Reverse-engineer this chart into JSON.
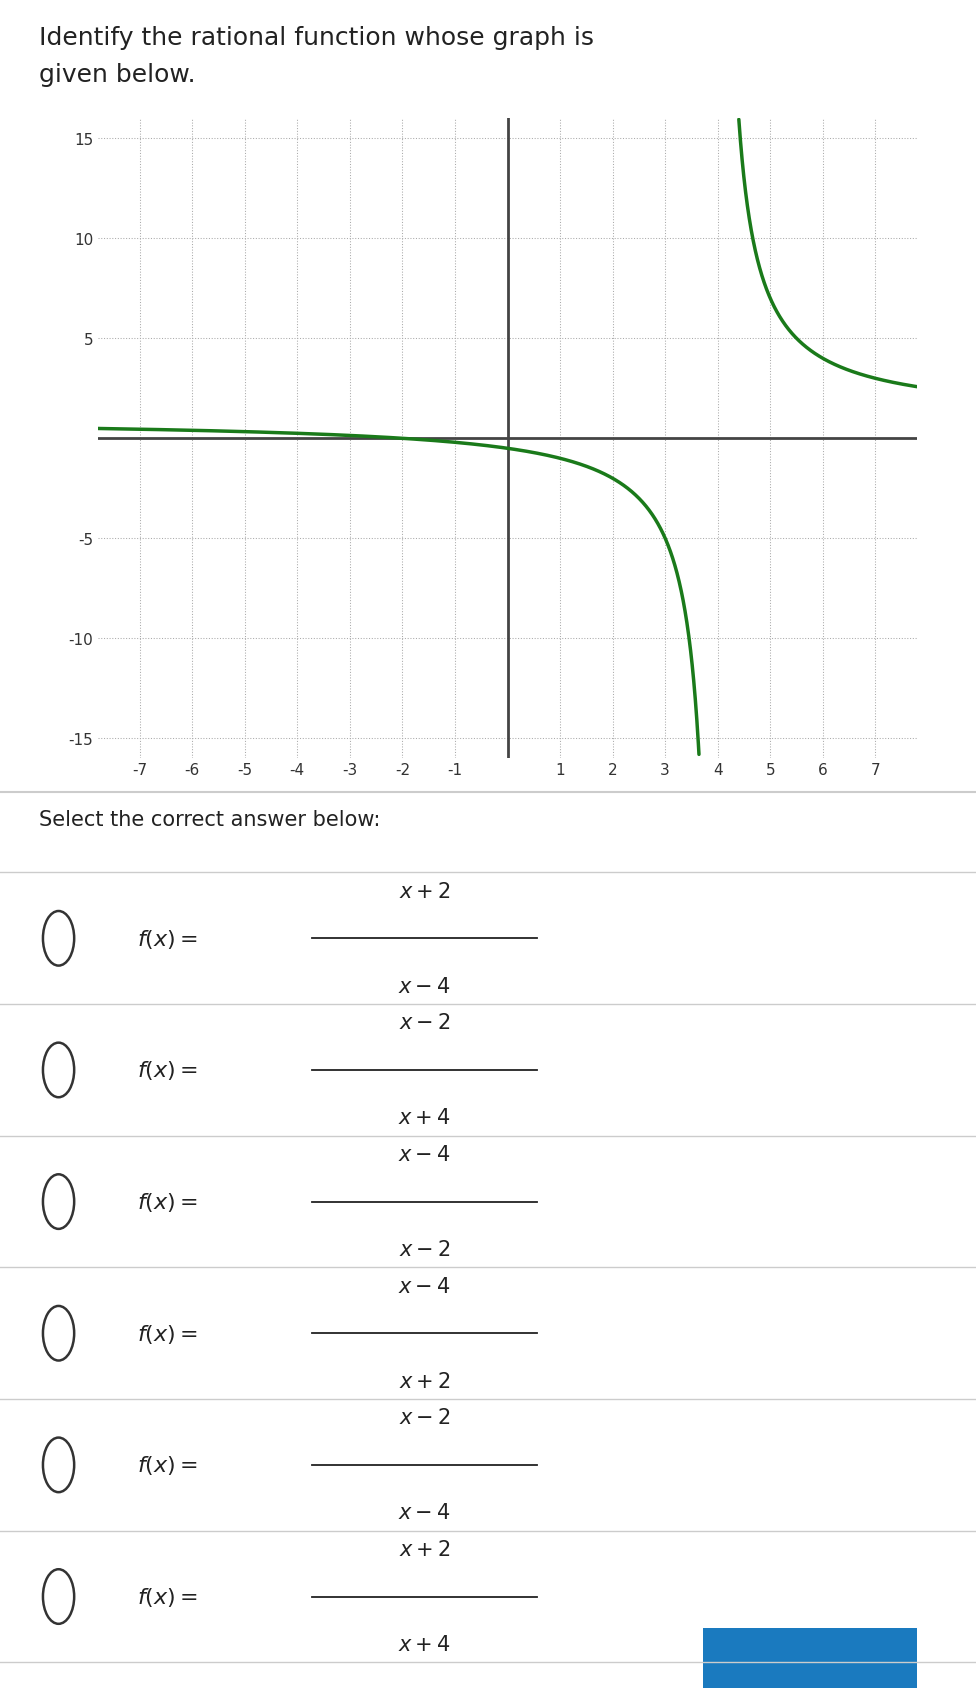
{
  "title_line1": "Identify the rational function whose graph is",
  "title_line2": "given below.",
  "title_fontsize": 18,
  "select_text": "Select the correct answer below:",
  "options": [
    {
      "numerator": "x + 2",
      "denominator": "x − 4"
    },
    {
      "numerator": "x − 2",
      "denominator": "x + 4"
    },
    {
      "numerator": "x − 4",
      "denominator": "x − 2"
    },
    {
      "numerator": "x − 4",
      "denominator": "x + 2"
    },
    {
      "numerator": "x − 2",
      "denominator": "x − 4"
    },
    {
      "numerator": "x + 2",
      "denominator": "x + 4"
    }
  ],
  "xlim": [
    -7.8,
    7.8
  ],
  "ylim": [
    -16,
    16
  ],
  "xticks": [
    -7,
    -6,
    -5,
    -4,
    -3,
    -2,
    -1,
    1,
    2,
    3,
    4,
    5,
    6,
    7
  ],
  "yticks": [
    -15,
    -10,
    -5,
    5,
    10,
    15
  ],
  "vertical_asymptote": 4,
  "curve_color": "#1a7a1a",
  "curve_linewidth": 2.5,
  "grid_color": "#aaaaaa",
  "axis_color": "#444444",
  "background_color": "#ffffff",
  "plot_bg_color": "#ffffff",
  "circle_color": "#333333",
  "divider_color": "#cccccc",
  "text_color": "#222222"
}
